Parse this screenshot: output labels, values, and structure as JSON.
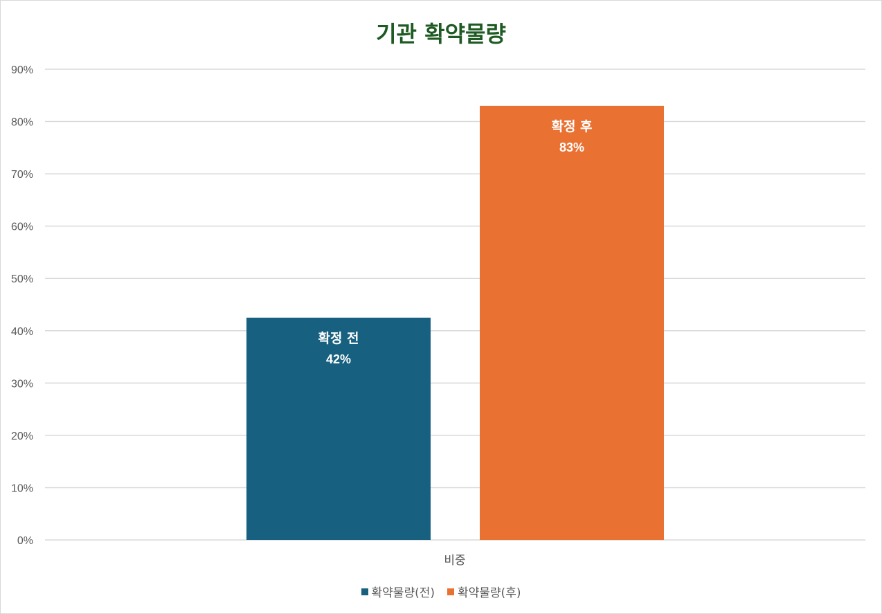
{
  "chart_data": {
    "type": "bar",
    "title": "기관 확약물량",
    "categories": [
      "비중"
    ],
    "series": [
      {
        "name": "확약물량(전)",
        "label": "확정 전",
        "value_label": "42%",
        "values": [
          42.5
        ],
        "color": "#17607f"
      },
      {
        "name": "확약물량(후)",
        "label": "확정 후",
        "value_label": "83%",
        "values": [
          83.0
        ],
        "color": "#e97132"
      }
    ],
    "ylim": [
      0,
      90
    ],
    "yticks": [
      "0%",
      "10%",
      "20%",
      "30%",
      "40%",
      "50%",
      "60%",
      "70%",
      "80%",
      "90%"
    ],
    "grid": true,
    "legend_position": "bottom",
    "xlabel": "",
    "ylabel": ""
  }
}
